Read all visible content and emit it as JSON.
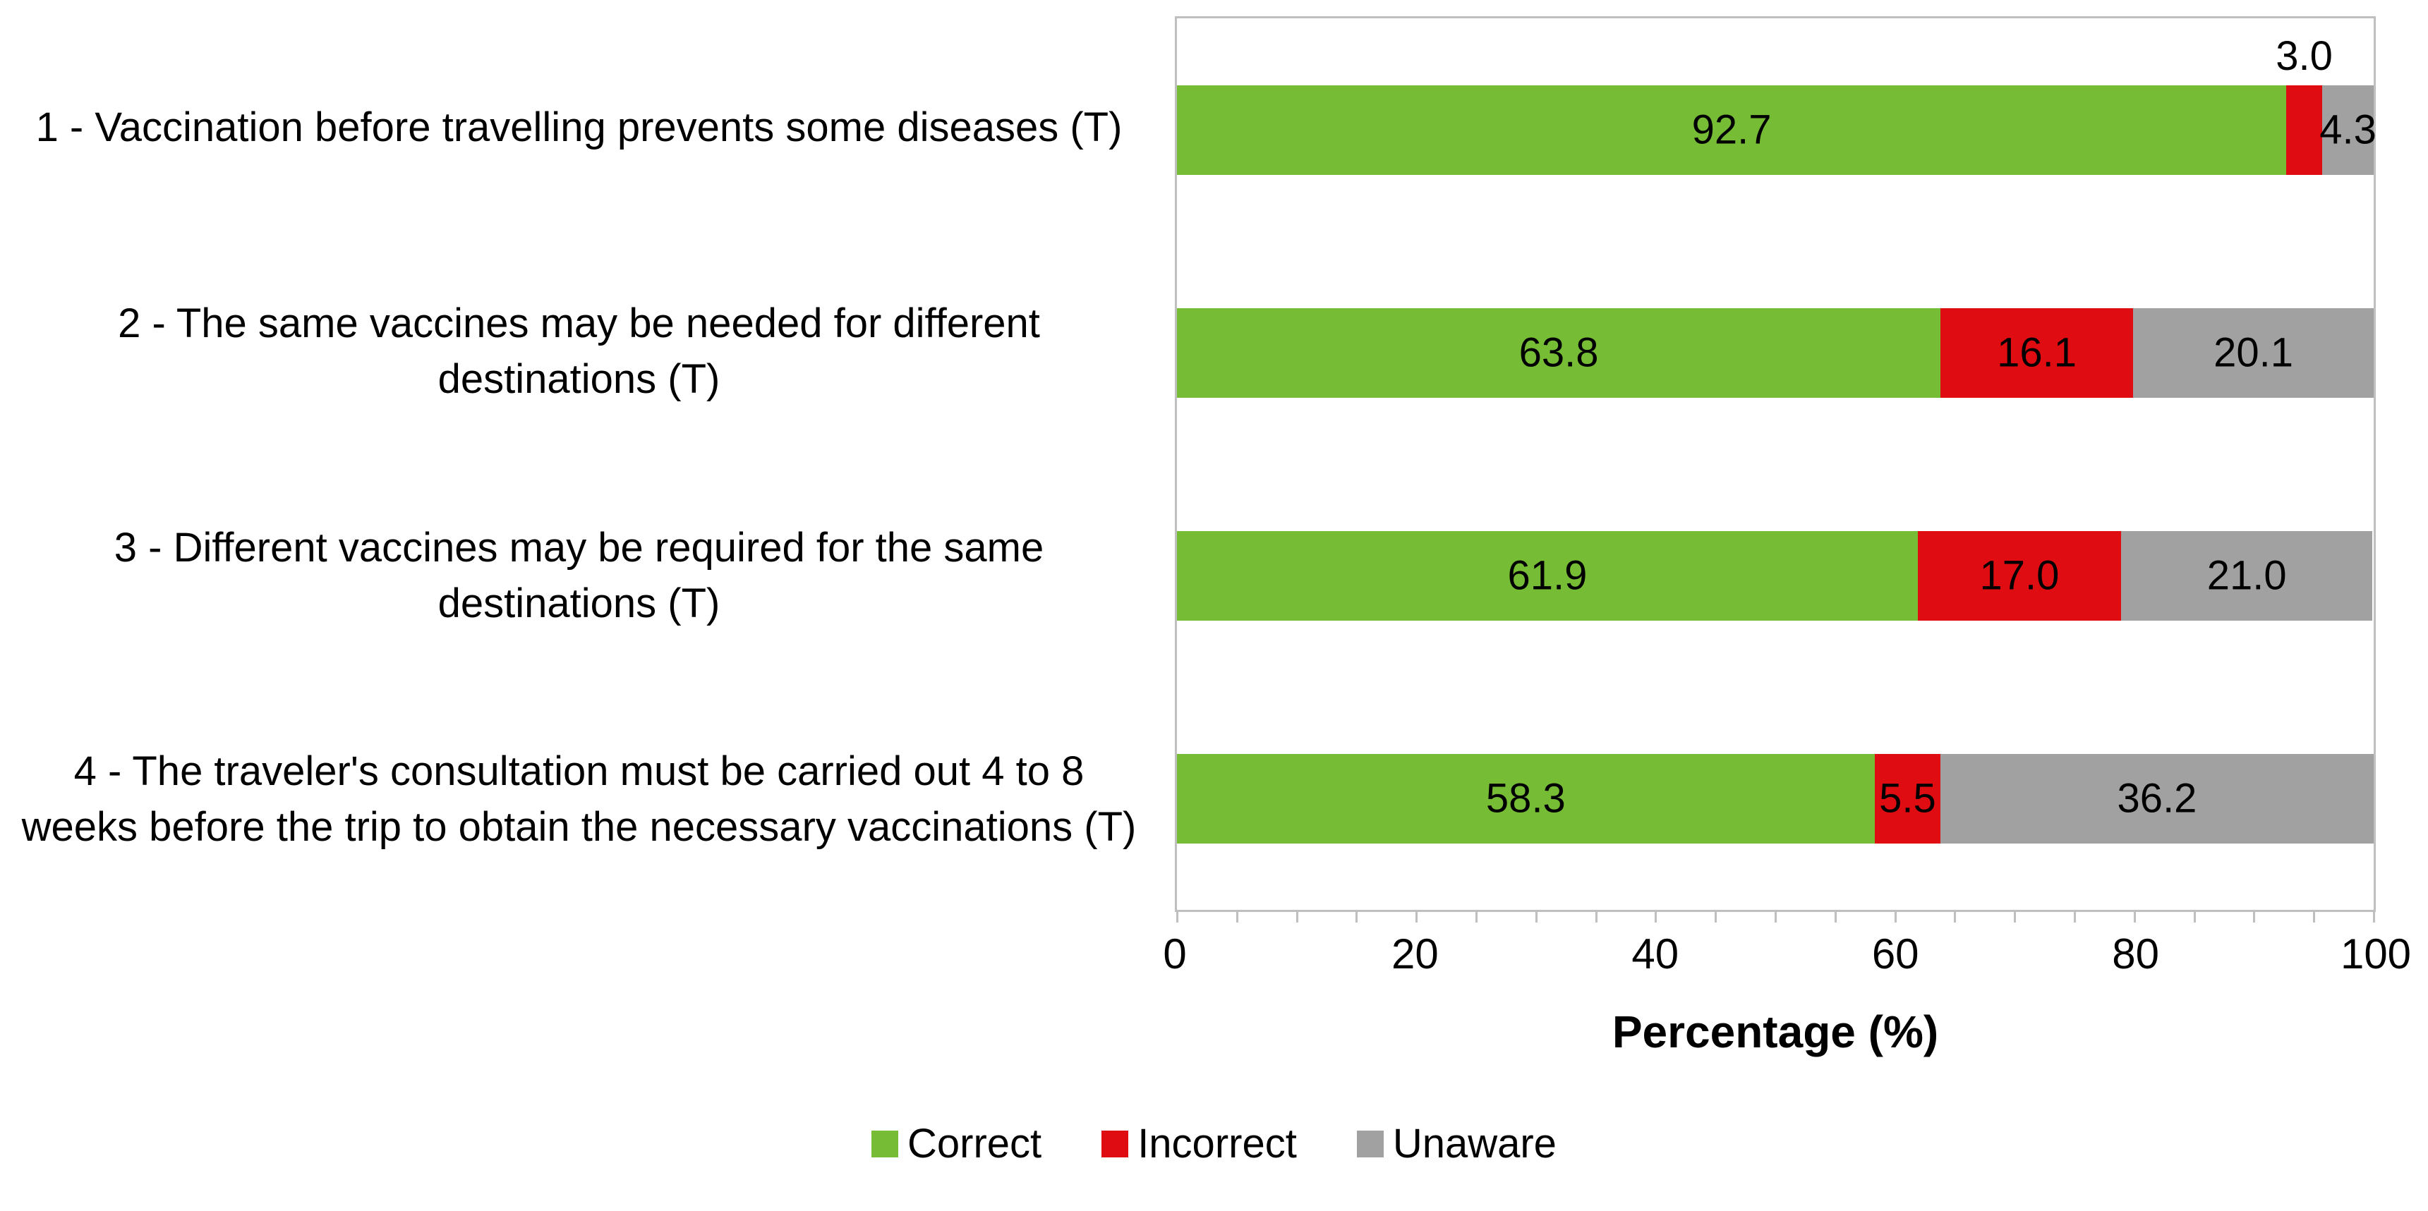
{
  "chart_data": {
    "type": "bar",
    "orientation": "horizontal",
    "stacked": true,
    "title": "",
    "xlabel": "Percentage (%)",
    "ylabel": "",
    "xlim": [
      0,
      100
    ],
    "x_ticks": [
      "0",
      "20",
      "40",
      "60",
      "80",
      "100"
    ],
    "x_tick_values": [
      0,
      20,
      40,
      60,
      80,
      100
    ],
    "x_minor_tick_step": 5,
    "grid": false,
    "legend_position": "bottom",
    "categories": [
      "1 - Vaccination before travelling prevents some diseases (T)",
      "2 - The same vaccines may be needed for different destinations (T)",
      "3 - Different vaccines may be required for the same destinations (T)",
      "4 - The traveler's consultation must be carried out 4 to 8 weeks before the trip to obtain the necessary vaccinations (T)"
    ],
    "series": [
      {
        "name": "Correct",
        "color": "#76BC34",
        "values": [
          92.7,
          63.8,
          61.9,
          58.3
        ]
      },
      {
        "name": "Incorrect",
        "color": "#DF0C12",
        "values": [
          3.0,
          16.1,
          17.0,
          5.5
        ]
      },
      {
        "name": "Unaware",
        "color": "#A1A1A1",
        "values": [
          4.3,
          20.1,
          21.0,
          36.2
        ]
      }
    ],
    "value_label_decimals": 1,
    "outside_label": {
      "category_index": 0,
      "series_index": 1
    },
    "colors": {
      "axis_line": "#BFBFBF",
      "text": "#000000",
      "background": "#FFFFFF"
    }
  }
}
